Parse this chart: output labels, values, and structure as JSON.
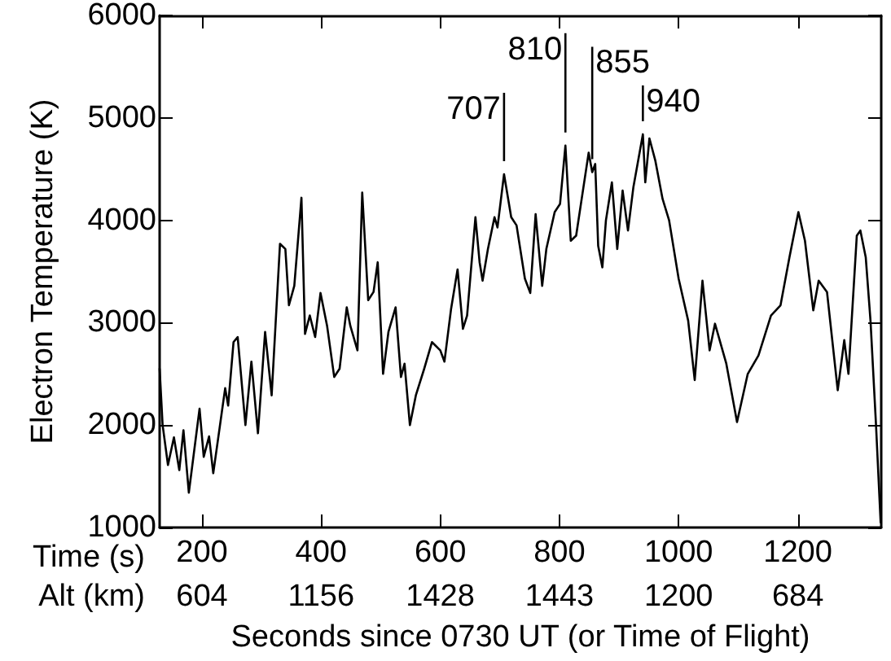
{
  "chart_data": {
    "type": "line",
    "xlabel": "Seconds since 0730 UT (or Time of Flight)",
    "ylabel": "Electron Temperature (K)",
    "xlim": [
      129,
      1340
    ],
    "ylim": [
      1000,
      6000
    ],
    "xticks": [
      200,
      400,
      600,
      800,
      1000,
      1200
    ],
    "yticks": [
      1000,
      2000,
      3000,
      4000,
      5000,
      6000
    ],
    "grid": false,
    "marker": "none",
    "line_style": "solid",
    "annotations": [
      "Time (s)",
      "Alt (km)",
      "604",
      "1156",
      "1428",
      "1443",
      "1200",
      "684",
      {
        "text": "707",
        "x": 707,
        "y": 4450
      },
      {
        "text": "810",
        "x": 810,
        "y": 4730
      },
      {
        "text": "855",
        "x": 855,
        "y": 4470
      },
      {
        "text": "940",
        "x": 940,
        "y": 4840
      }
    ],
    "series": [
      {
        "color": "#000000",
        "x": [
          129,
          134,
          143,
          153,
          162,
          169,
          178,
          196,
          203,
          212,
          219,
          239,
          244,
          253,
          260,
          273,
          283,
          294,
          306,
          317,
          331,
          340,
          346,
          355,
          367,
          373,
          381,
          390,
          399,
          410,
          422,
          431,
          443,
          449,
          461,
          469,
          479,
          488,
          495,
          504,
          513,
          525,
          534,
          540,
          549,
          559,
          573,
          586,
          600,
          607,
          618,
          629,
          638,
          645,
          659,
          666,
          671,
          680,
          691,
          696,
          707,
          719,
          728,
          742,
          751,
          760,
          771,
          778,
          792,
          801,
          810,
          819,
          828,
          849,
          855,
          860,
          865,
          872,
          878,
          888,
          897,
          906,
          915,
          924,
          940,
          944,
          951,
          961,
          973,
          984,
          1000,
          1016,
          1027,
          1040,
          1052,
          1061,
          1080,
          1098,
          1116,
          1134,
          1155,
          1171,
          1186,
          1201,
          1212,
          1226,
          1235,
          1249,
          1267,
          1278,
          1285,
          1299,
          1305,
          1314,
          1322,
          1331,
          1339
        ],
        "values": [
          2550,
          2000,
          1610,
          1880,
          1560,
          1950,
          1340,
          2160,
          1690,
          1890,
          1530,
          2360,
          2190,
          2810,
          2860,
          2000,
          2620,
          1920,
          2910,
          2290,
          3770,
          3720,
          3170,
          3360,
          4220,
          2890,
          3070,
          2860,
          3290,
          2970,
          2470,
          2550,
          3150,
          2970,
          2730,
          4270,
          3220,
          3300,
          3590,
          2500,
          2910,
          3150,
          2470,
          2600,
          2000,
          2290,
          2550,
          2810,
          2730,
          2620,
          3130,
          3520,
          2940,
          3070,
          4030,
          3590,
          3410,
          3720,
          4030,
          3930,
          4450,
          4030,
          3950,
          3430,
          3290,
          4060,
          3360,
          3720,
          4080,
          4160,
          4730,
          3800,
          3850,
          4660,
          4470,
          4550,
          3750,
          3540,
          4000,
          4370,
          3720,
          4290,
          3900,
          4320,
          4840,
          4370,
          4800,
          4580,
          4210,
          4000,
          3430,
          3020,
          2440,
          3410,
          2730,
          2990,
          2600,
          2030,
          2500,
          2680,
          3070,
          3170,
          3640,
          4080,
          3800,
          3120,
          3410,
          3300,
          2340,
          2830,
          2500,
          3850,
          3900,
          3640,
          3020,
          2030,
          1050
        ]
      }
    ]
  }
}
